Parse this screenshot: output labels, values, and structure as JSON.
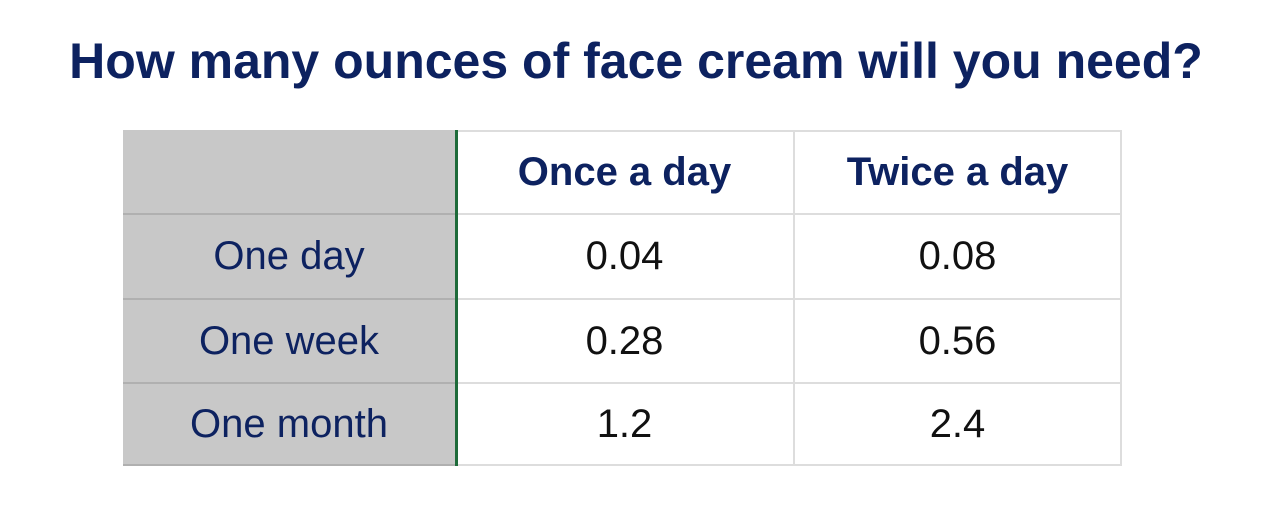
{
  "title": "How many ounces of face cream will you need?",
  "table": {
    "columns": [
      "Once a day",
      "Twice a day"
    ],
    "rows": [
      {
        "label": "One day",
        "values": [
          "0.04",
          "0.08"
        ]
      },
      {
        "label": "One week",
        "values": [
          "0.28",
          "0.56"
        ]
      },
      {
        "label": "One month",
        "values": [
          "1.2",
          "2.4"
        ]
      }
    ]
  }
}
